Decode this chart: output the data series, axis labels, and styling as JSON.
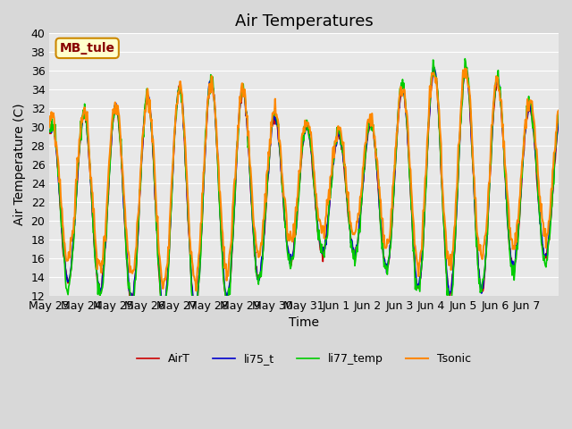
{
  "title": "Air Temperatures",
  "xlabel": "Time",
  "ylabel": "Air Temperature (C)",
  "ylim": [
    12,
    40
  ],
  "yticks": [
    12,
    14,
    16,
    18,
    20,
    22,
    24,
    26,
    28,
    30,
    32,
    34,
    36,
    38,
    40
  ],
  "x_labels": [
    "May 23",
    "May 24",
    "May 25",
    "May 26",
    "May 27",
    "May 28",
    "May 29",
    "May 30",
    "May 31",
    "Jun 1",
    "Jun 2",
    "Jun 3",
    "Jun 4",
    "Jun 5",
    "Jun 6",
    "Jun 7"
  ],
  "annotation_text": "MB_tule",
  "annotation_bg": "#ffffcc",
  "annotation_border": "#cc8800",
  "annotation_text_color": "#880000",
  "fig_bg": "#d8d8d8",
  "plot_bg": "#e8e8e8",
  "line_colors": {
    "AirT": "#cc0000",
    "li75_t": "#0000cc",
    "li77_temp": "#00cc00",
    "Tsonic": "#ff8800"
  },
  "line_widths": {
    "AirT": 1.2,
    "li75_t": 1.2,
    "li77_temp": 1.2,
    "Tsonic": 1.5
  },
  "title_fontsize": 13,
  "axis_label_fontsize": 10,
  "tick_fontsize": 9,
  "base_vals": [
    22,
    22,
    22,
    22,
    22,
    23,
    23,
    23,
    23,
    23,
    23,
    24,
    24,
    24,
    24,
    24
  ],
  "amp_vals": [
    8,
    9,
    10,
    11,
    12,
    12,
    11,
    8,
    7,
    6,
    7,
    10,
    12,
    12,
    11,
    8
  ]
}
